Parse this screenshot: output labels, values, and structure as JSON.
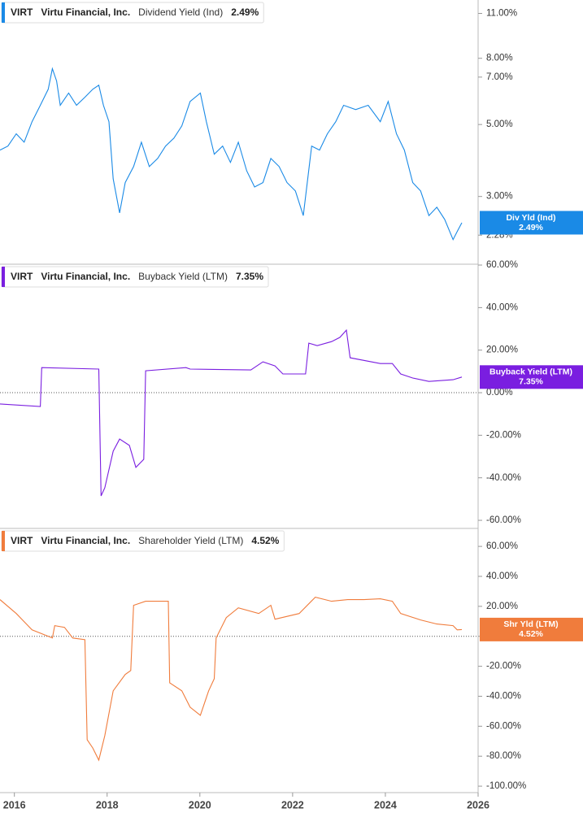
{
  "chart_data": [
    {
      "type": "line",
      "ticker": "VIRT",
      "company": "Virtu Financial, Inc.",
      "log_scale": true,
      "xlim": [
        2015.69,
        2026
      ],
      "ylim": [
        1.855,
        12.1
      ],
      "yticks": [
        {
          "value": 11,
          "label": "11.00%"
        },
        {
          "value": 8,
          "label": "8.00%"
        },
        {
          "value": 7,
          "label": "7.00%"
        },
        {
          "value": 5,
          "label": "5.00%"
        },
        {
          "value": 3,
          "label": "3.00%"
        },
        {
          "value": 2.28,
          "label": "2.28%"
        }
      ],
      "x": [
        2015.69,
        2015.86,
        2016.04,
        2016.21,
        2016.38,
        2016.56,
        2016.73,
        2016.82,
        2016.91,
        2016.99,
        2017.17,
        2017.34,
        2017.52,
        2017.69,
        2017.82,
        2017.92,
        2018.04,
        2018.13,
        2018.27,
        2018.39,
        2018.57,
        2018.74,
        2018.91,
        2019.09,
        2019.26,
        2019.44,
        2019.61,
        2019.79,
        2020.01,
        2020.14,
        2020.31,
        2020.49,
        2020.66,
        2020.83,
        2021.01,
        2021.18,
        2021.36,
        2021.53,
        2021.71,
        2021.88,
        2022.06,
        2022.23,
        2022.41,
        2022.58,
        2022.75,
        2022.93,
        2023.1,
        2023.36,
        2023.63,
        2023.89,
        2024.06,
        2024.24,
        2024.41,
        2024.59,
        2024.76,
        2024.94,
        2025.11,
        2025.28,
        2025.46,
        2025.55,
        2025.65
      ],
      "series": [
        {
          "name": "Dividend Yield (Ind)",
          "short_name": "Div Yld (Ind)",
          "current_label": "2.49%",
          "color": "#1a8ae6",
          "values": [
            4.17,
            4.29,
            4.68,
            4.41,
            5.1,
            5.73,
            6.42,
            7.43,
            6.81,
            5.73,
            6.25,
            5.73,
            6.07,
            6.42,
            6.61,
            5.73,
            5.1,
            3.4,
            2.67,
            3.31,
            3.71,
            4.41,
            3.71,
            3.93,
            4.29,
            4.54,
            4.95,
            5.89,
            6.25,
            5.1,
            4.05,
            4.29,
            3.82,
            4.41,
            3.6,
            3.21,
            3.31,
            3.93,
            3.71,
            3.31,
            3.12,
            2.62,
            4.29,
            4.17,
            4.68,
            5.1,
            5.73,
            5.56,
            5.73,
            5.1,
            5.89,
            4.68,
            4.17,
            3.31,
            3.12,
            2.62,
            2.78,
            2.55,
            2.21,
            2.34,
            2.49
          ]
        }
      ]
    },
    {
      "type": "line",
      "ticker": "VIRT",
      "company": "Virtu Financial, Inc.",
      "zero_line": true,
      "xlim": [
        2015.69,
        2026
      ],
      "ylim": [
        -63.8,
        60.4
      ],
      "yticks": [
        {
          "value": 60,
          "label": "60.00%"
        },
        {
          "value": 40,
          "label": "40.00%"
        },
        {
          "value": 20,
          "label": "20.00%"
        },
        {
          "value": 0,
          "label": "0.00%"
        },
        {
          "value": -20,
          "label": "-20.00%"
        },
        {
          "value": -40,
          "label": "-40.00%"
        },
        {
          "value": -60,
          "label": "-60.00%"
        }
      ],
      "x": [
        2015.69,
        2016.56,
        2016.59,
        2017.82,
        2017.87,
        2017.95,
        2018.13,
        2018.27,
        2018.48,
        2018.62,
        2018.79,
        2018.83,
        2019.7,
        2019.79,
        2021.1,
        2021.36,
        2021.62,
        2021.79,
        2022.28,
        2022.35,
        2022.53,
        2022.84,
        2023.02,
        2023.16,
        2023.24,
        2023.89,
        2024.15,
        2024.33,
        2024.59,
        2024.94,
        2025.46,
        2025.65
      ],
      "series": [
        {
          "name": "Buyback Yield (LTM)",
          "short_name": "Buyback Yield (LTM)",
          "current_label": "7.35%",
          "color": "#7a1ee0",
          "values": [
            -5.3,
            -6.5,
            11.8,
            11.1,
            -48.5,
            -44.7,
            -27.5,
            -21.8,
            -24.8,
            -35.1,
            -31.3,
            10.3,
            11.8,
            11.1,
            10.7,
            14.5,
            12.6,
            8.8,
            8.8,
            23.3,
            22.1,
            24.0,
            26.0,
            29.4,
            16.4,
            13.7,
            13.7,
            8.8,
            6.9,
            5.3,
            6.1,
            7.35
          ]
        }
      ]
    },
    {
      "type": "line",
      "ticker": "VIRT",
      "company": "Virtu Financial, Inc.",
      "zero_line": true,
      "xlim": [
        2015.69,
        2026
      ],
      "ylim": [
        -104.3,
        72
      ],
      "yticks": [
        {
          "value": 60,
          "label": "60.00%"
        },
        {
          "value": 40,
          "label": "40.00%"
        },
        {
          "value": 20,
          "label": "20.00%"
        },
        {
          "value": 0,
          "label": "0.00%"
        },
        {
          "value": -20,
          "label": "-20.00%"
        },
        {
          "value": -40,
          "label": "-40.00%"
        },
        {
          "value": -60,
          "label": "-60.00%"
        },
        {
          "value": -80,
          "label": "-80.00%"
        },
        {
          "value": -100,
          "label": "-100.00%"
        }
      ],
      "xticks": [
        2016,
        2018,
        2020,
        2022,
        2024,
        2026
      ],
      "x": [
        2015.69,
        2016.04,
        2016.38,
        2016.82,
        2016.87,
        2017.08,
        2017.26,
        2017.52,
        2017.57,
        2017.69,
        2017.82,
        2017.95,
        2018.13,
        2018.39,
        2018.51,
        2018.57,
        2018.83,
        2019.32,
        2019.35,
        2019.61,
        2019.79,
        2020.01,
        2020.19,
        2020.31,
        2020.35,
        2020.57,
        2020.83,
        2021.27,
        2021.53,
        2021.62,
        2022.14,
        2022.49,
        2022.84,
        2023.19,
        2023.54,
        2023.89,
        2024.15,
        2024.33,
        2024.76,
        2025.11,
        2025.46,
        2025.55,
        2025.65
      ],
      "series": [
        {
          "name": "Shareholder Yield (LTM)",
          "short_name": "Shr Yld (LTM)",
          "current_label": "4.52%",
          "color": "#f07c3c",
          "values": [
            24.5,
            15.2,
            4.3,
            -1.1,
            7.1,
            6.0,
            -1.1,
            -2.2,
            -69.0,
            -74.5,
            -82.6,
            -66.3,
            -36.4,
            -25.5,
            -22.8,
            20.7,
            23.4,
            23.4,
            -31.0,
            -36.4,
            -47.3,
            -52.7,
            -36.4,
            -28.3,
            -1.1,
            12.5,
            19.0,
            15.2,
            20.7,
            11.4,
            15.2,
            26.1,
            23.4,
            24.5,
            24.5,
            25.0,
            23.4,
            15.2,
            10.9,
            8.2,
            7.1,
            4.3,
            4.52
          ]
        }
      ]
    }
  ]
}
